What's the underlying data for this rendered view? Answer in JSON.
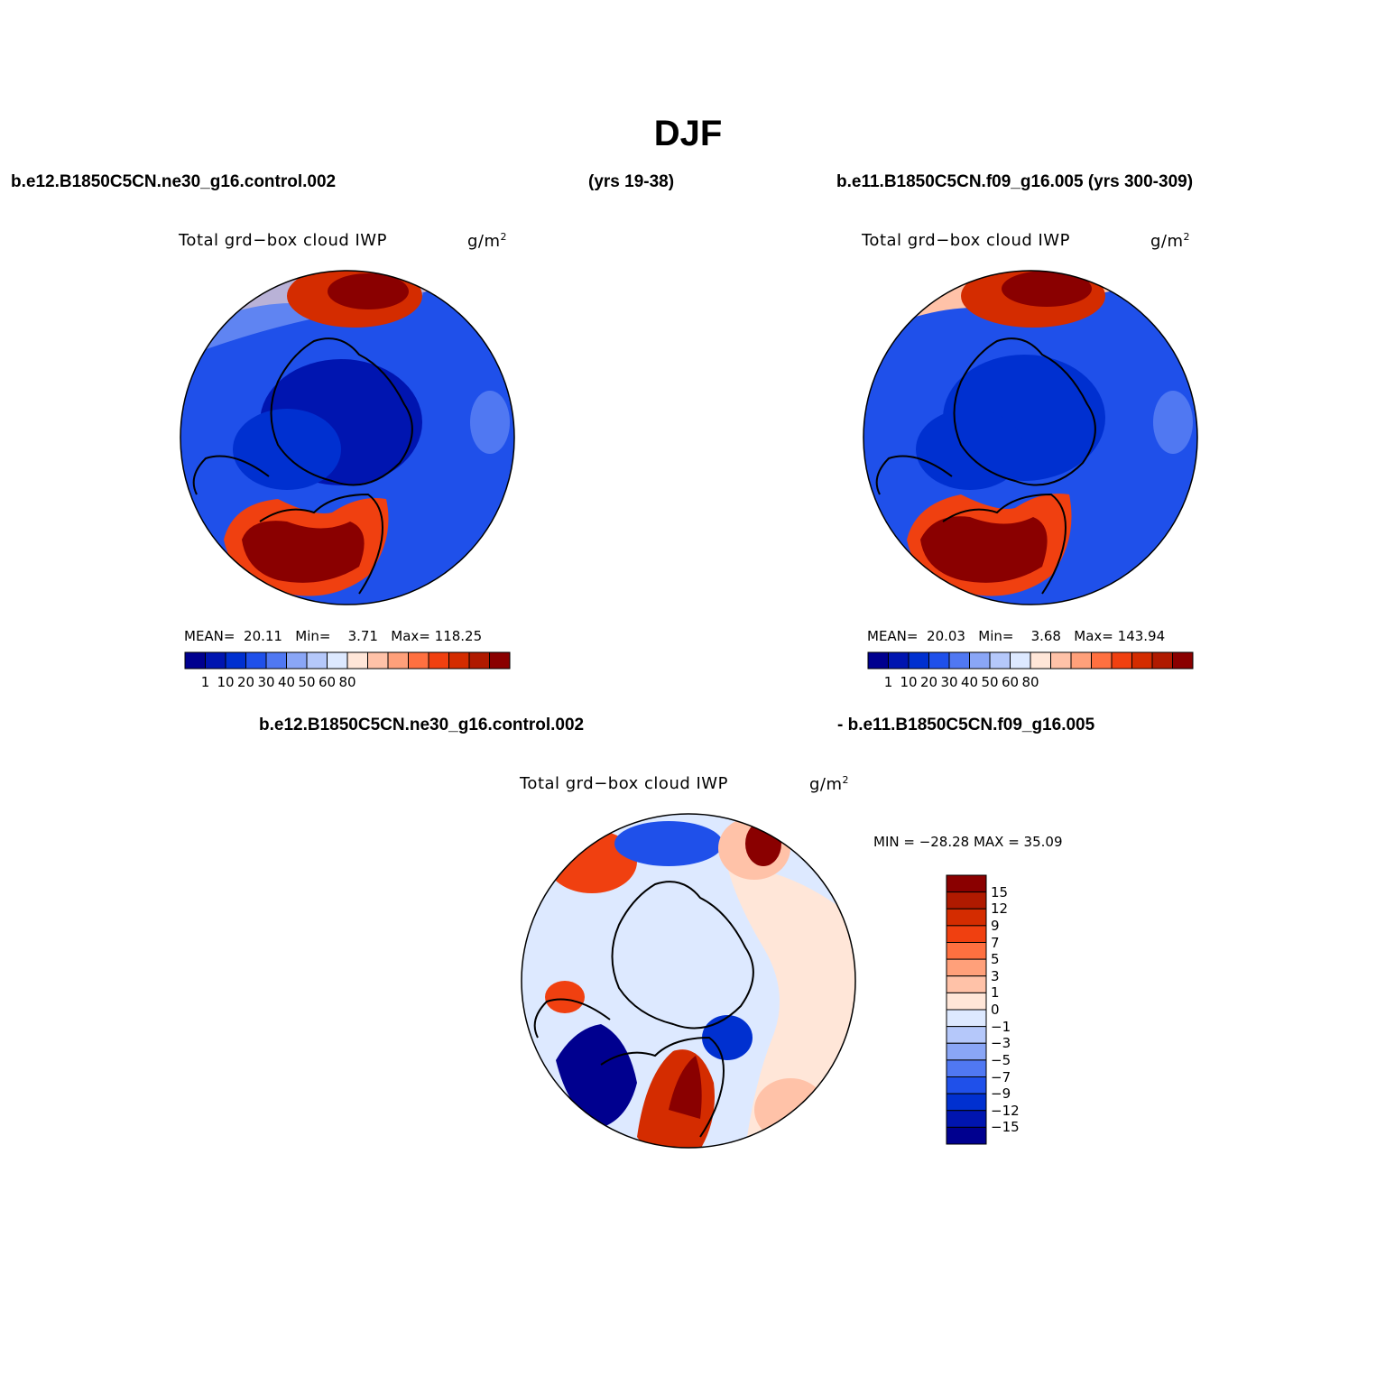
{
  "figure": {
    "title": "DJF",
    "case1_name": "b.e12.B1850C5CN.ne30_g16.control.002",
    "case1_years": "(yrs 19-38)",
    "case2_label": "b.e11.B1850C5CN.f09_g16.005 (yrs 300-309)",
    "diff_case1": "b.e12.B1850C5CN.ne30_g16.control.002",
    "diff_case2": "- b.e11.B1850C5CN.f09_g16.005"
  },
  "panels": [
    {
      "id": "case1",
      "title": "Total grd−box cloud IWP",
      "units_base": "g/m",
      "units_exp": "2",
      "stats": {
        "mean_label": "MEAN=",
        "mean": "20.11",
        "min_label": "Min=",
        "min": "3.71",
        "max_label": "Max=",
        "max": "118.25"
      }
    },
    {
      "id": "case2",
      "title": "Total grd−box cloud IWP",
      "units_base": "g/m",
      "units_exp": "2",
      "stats": {
        "mean_label": "MEAN=",
        "mean": "20.03",
        "min_label": "Min=",
        "min": "3.68",
        "max_label": "Max=",
        "max": "143.94"
      }
    },
    {
      "id": "diff",
      "title": "Total grd−box cloud IWP",
      "units_base": "g/m",
      "units_exp": "2",
      "minmax": "MIN = −28.28 MAX =  35.09"
    }
  ],
  "colorbar_abs": {
    "colors": [
      "#00008f",
      "#0015b0",
      "#0030d0",
      "#1f50ea",
      "#5078f2",
      "#8aa6f6",
      "#b5c8fa",
      "#dde9ff",
      "#ffe6d8",
      "#ffc2a8",
      "#ffa07a",
      "#ff7040",
      "#f04010",
      "#d42c00",
      "#b01a00",
      "#8a0000"
    ],
    "labels": [
      "1",
      "10",
      "20",
      "30",
      "40",
      "50",
      "60",
      "80"
    ]
  },
  "colorbar_diff": {
    "colors": [
      "#8a0000",
      "#b01a00",
      "#d42c00",
      "#f04010",
      "#ff7040",
      "#ffa07a",
      "#ffc2a8",
      "#ffe6d8",
      "#dde9ff",
      "#b5c8fa",
      "#8aa6f6",
      "#5078f2",
      "#1f50ea",
      "#0030d0",
      "#0015b0",
      "#00008f"
    ],
    "labels": [
      "15",
      "12",
      "9",
      "7",
      "5",
      "3",
      "1",
      "0",
      "−1",
      "−3",
      "−5",
      "−7",
      "−9",
      "−12",
      "−15"
    ]
  }
}
